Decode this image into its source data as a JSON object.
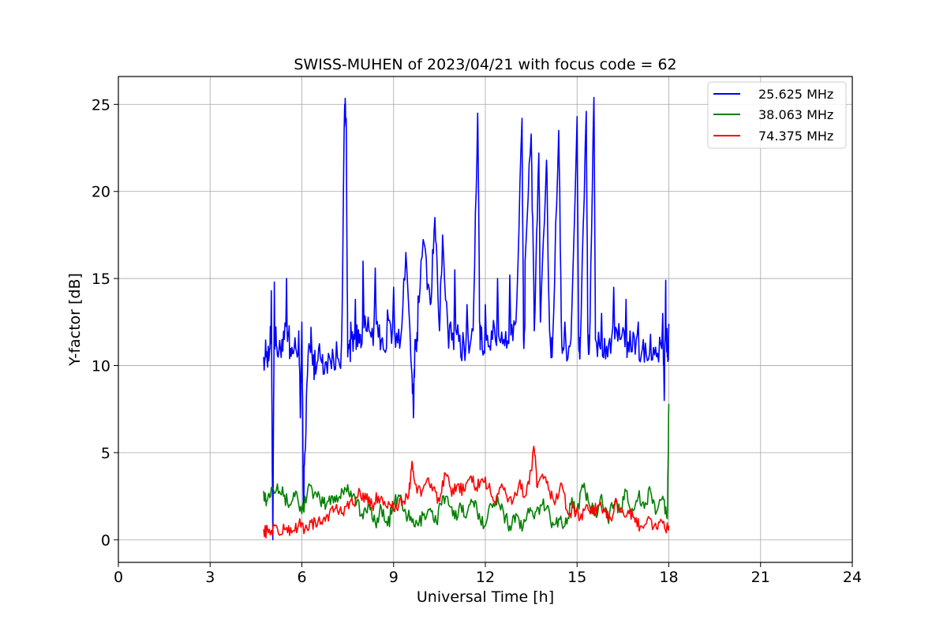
{
  "chart_data": {
    "type": "line",
    "title": "SWISS-MUHEN of 2023/04/21 with focus code = 62",
    "xlabel": "Universal Time [h]",
    "ylabel": "Y-factor [dB]",
    "xlim": [
      0,
      24
    ],
    "ylim": [
      -1.3,
      26.6
    ],
    "x_ticks": [
      0,
      3,
      6,
      9,
      12,
      15,
      18,
      21,
      24
    ],
    "y_ticks": [
      0,
      5,
      10,
      15,
      20,
      25
    ],
    "grid": true,
    "legend_position": "top-right",
    "series": [
      {
        "name": "25.625 MHz",
        "color": "#0000ff",
        "x": [
          4.75,
          4.85,
          4.95,
          5.0,
          5.05,
          5.1,
          5.2,
          5.35,
          5.5,
          5.6,
          5.75,
          5.9,
          5.95,
          6.0,
          6.05,
          6.1,
          6.2,
          6.3,
          6.4,
          6.55,
          6.7,
          6.9,
          7.1,
          7.3,
          7.4,
          7.45,
          7.5,
          7.6,
          7.75,
          7.9,
          8.0,
          8.2,
          8.4,
          8.6,
          8.8,
          9.0,
          9.2,
          9.4,
          9.6,
          9.65,
          9.7,
          9.8,
          10.0,
          10.2,
          10.35,
          10.5,
          10.6,
          10.8,
          11.0,
          11.2,
          11.4,
          11.6,
          11.75,
          11.8,
          11.85,
          12.0,
          12.2,
          12.4,
          12.6,
          12.8,
          13.0,
          13.2,
          13.25,
          13.3,
          13.5,
          13.6,
          13.75,
          13.8,
          14.0,
          14.1,
          14.2,
          14.4,
          14.5,
          14.6,
          14.8,
          15.0,
          15.05,
          15.1,
          15.3,
          15.35,
          15.4,
          15.55,
          15.6,
          15.8,
          16.0,
          16.2,
          16.4,
          16.6,
          16.8,
          17.0,
          17.2,
          17.4,
          17.6,
          17.8,
          17.85,
          17.9,
          17.95,
          18.0
        ],
        "values": [
          10.5,
          10.8,
          11.0,
          14.3,
          0.0,
          14.8,
          10.6,
          11.5,
          15.0,
          10.4,
          11.0,
          12.0,
          7.0,
          12.5,
          2.0,
          5.0,
          10.5,
          12.2,
          9.2,
          11.0,
          9.5,
          10.5,
          9.8,
          11.5,
          25.0,
          24.2,
          10.5,
          12.5,
          13.8,
          11.8,
          16.0,
          12.0,
          15.6,
          11.5,
          13.2,
          14.5,
          11.0,
          16.5,
          9.5,
          7.0,
          11.5,
          14.0,
          17.0,
          13.5,
          18.5,
          12.0,
          17.5,
          11.0,
          15.5,
          10.5,
          13.5,
          12.0,
          24.5,
          15.5,
          11.5,
          13.5,
          12.0,
          15.0,
          11.5,
          15.2,
          12.5,
          24.2,
          11.5,
          16.0,
          23.3,
          12.0,
          22.2,
          12.5,
          21.8,
          12.0,
          11.5,
          23.5,
          11.2,
          12.5,
          11.5,
          24.3,
          11.5,
          11.0,
          24.6,
          12.0,
          11.0,
          25.4,
          11.5,
          13.0,
          10.5,
          14.5,
          11.5,
          13.8,
          10.8,
          12.5,
          10.2,
          11.8,
          10.5,
          13.0,
          8.0,
          14.9,
          10.5,
          12.4
        ]
      },
      {
        "name": "38.063 MHz",
        "color": "#008000",
        "x": [
          4.75,
          4.85,
          5.0,
          5.2,
          5.4,
          5.6,
          5.8,
          6.0,
          6.2,
          6.4,
          6.6,
          6.8,
          7.0,
          7.2,
          7.4,
          7.6,
          7.8,
          8.0,
          8.2,
          8.4,
          8.6,
          8.8,
          9.0,
          9.2,
          9.4,
          9.6,
          9.8,
          10.0,
          10.2,
          10.4,
          10.6,
          10.8,
          11.0,
          11.2,
          11.4,
          11.6,
          11.8,
          12.0,
          12.2,
          12.4,
          12.6,
          12.8,
          13.0,
          13.2,
          13.4,
          13.6,
          13.8,
          14.0,
          14.2,
          14.4,
          14.6,
          14.8,
          15.0,
          15.2,
          15.4,
          15.6,
          15.8,
          16.0,
          16.2,
          16.4,
          16.6,
          16.8,
          17.0,
          17.2,
          17.4,
          17.6,
          17.8,
          17.95,
          18.0
        ],
        "values": [
          2.8,
          2.2,
          3.0,
          3.2,
          2.5,
          2.0,
          2.8,
          1.5,
          3.0,
          2.6,
          2.2,
          2.0,
          2.5,
          2.4,
          3.0,
          2.8,
          2.2,
          1.2,
          2.0,
          1.0,
          1.8,
          0.8,
          2.0,
          2.5,
          1.5,
          1.0,
          0.8,
          1.5,
          1.8,
          1.0,
          2.5,
          2.0,
          1.2,
          2.0,
          1.5,
          2.2,
          1.5,
          0.8,
          2.0,
          2.5,
          1.5,
          0.8,
          1.5,
          0.5,
          1.8,
          1.2,
          2.0,
          1.8,
          1.0,
          1.2,
          0.8,
          2.0,
          1.8,
          3.0,
          2.0,
          1.5,
          2.6,
          1.2,
          2.0,
          1.6,
          2.8,
          1.8,
          2.5,
          1.8,
          2.8,
          1.6,
          2.5,
          1.2,
          7.8
        ]
      },
      {
        "name": "74.375 MHz",
        "color": "#ff0000",
        "x": [
          4.75,
          4.9,
          5.1,
          5.3,
          5.5,
          5.7,
          5.9,
          6.1,
          6.3,
          6.5,
          6.7,
          6.9,
          7.1,
          7.3,
          7.5,
          7.7,
          7.9,
          8.1,
          8.3,
          8.5,
          8.7,
          8.9,
          9.1,
          9.3,
          9.5,
          9.6,
          9.7,
          9.9,
          10.1,
          10.3,
          10.5,
          10.7,
          10.9,
          11.1,
          11.3,
          11.5,
          11.7,
          11.9,
          12.1,
          12.3,
          12.5,
          12.7,
          12.9,
          13.1,
          13.3,
          13.5,
          13.6,
          13.7,
          13.9,
          14.1,
          14.3,
          14.5,
          14.7,
          14.9,
          15.1,
          15.3,
          15.5,
          15.7,
          15.9,
          16.1,
          16.3,
          16.5,
          16.7,
          16.9,
          17.1,
          17.3,
          17.5,
          17.7,
          17.9,
          18.0
        ],
        "values": [
          0.6,
          0.4,
          0.8,
          0.3,
          0.7,
          0.5,
          0.9,
          0.6,
          1.0,
          0.8,
          1.2,
          1.5,
          1.8,
          1.5,
          2.2,
          2.0,
          2.8,
          2.3,
          2.0,
          2.5,
          2.2,
          2.0,
          1.8,
          2.2,
          2.6,
          4.5,
          3.2,
          2.5,
          3.5,
          3.0,
          2.2,
          3.8,
          2.5,
          3.2,
          2.8,
          3.6,
          3.0,
          3.5,
          3.0,
          2.2,
          3.0,
          2.5,
          2.2,
          3.2,
          2.5,
          4.0,
          5.2,
          3.0,
          3.5,
          2.8,
          2.2,
          3.2,
          1.5,
          1.8,
          1.2,
          2.0,
          1.5,
          2.0,
          1.6,
          1.2,
          2.2,
          1.6,
          1.5,
          1.0,
          0.8,
          1.2,
          0.7,
          1.0,
          0.5,
          0.8
        ]
      }
    ]
  }
}
